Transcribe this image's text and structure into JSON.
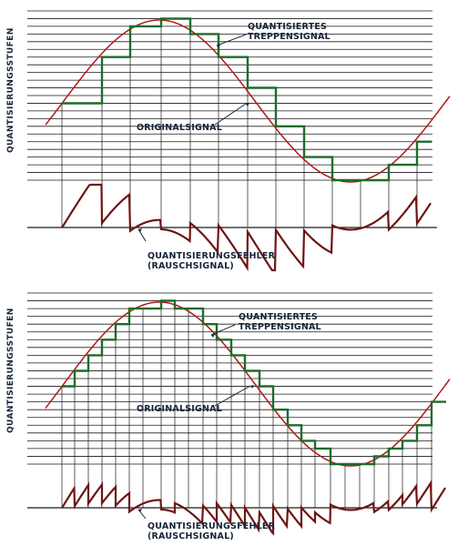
{
  "colors": {
    "background": "#ffffff",
    "grid": "#1a1a1a",
    "original_signal": "#b01818",
    "stair_signal": "#1f6b2a",
    "error_signal": "#6e1414",
    "labels": "#16243a"
  },
  "panels": [
    {
      "y_axis_label": "QUANTISIERUNGSSTUFEN",
      "label_stair_line1": "QUANTISIERTES",
      "label_stair_line2": "TREPPENSIGNAL",
      "label_original": "ORIGINALSIGNAL",
      "label_error_line1": "QUANTISIERUNGSFEHLER",
      "label_error_line2": "(RAUSCHSIGNAL)"
    },
    {
      "y_axis_label": "QUANTISIERUNGSSTUFEN",
      "label_stair_line1": "QUANTISIERTES",
      "label_stair_line2": "TREPPENSIGNAL",
      "label_original": "ORIGINALSIGNAL",
      "label_error_line1": "QUANTISIERUNGSFEHLER",
      "label_error_line2": "(RAUSCHSIGNAL)"
    }
  ]
}
